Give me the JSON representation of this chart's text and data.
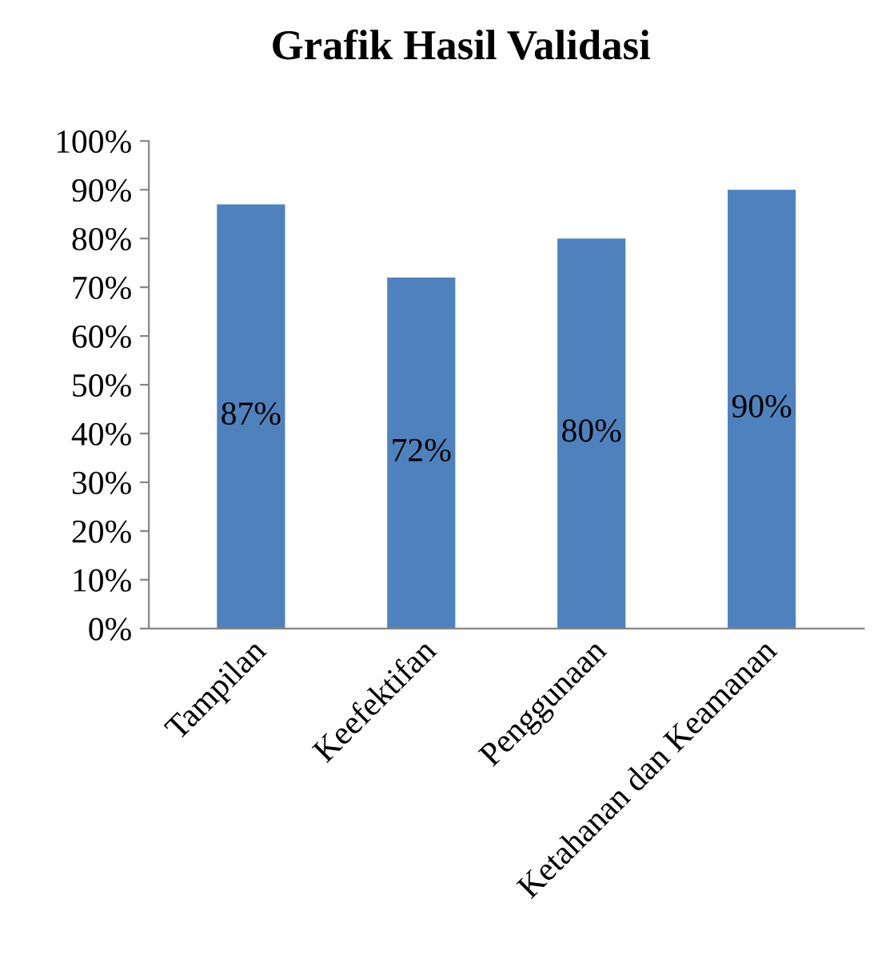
{
  "chart_data": {
    "type": "bar",
    "title": "Grafik Hasil Validasi",
    "categories": [
      "Tampilan",
      "Keefektifan",
      "Penggunaan",
      "Ketahanan dan Keamanan"
    ],
    "values": [
      87,
      72,
      80,
      90
    ],
    "value_labels": [
      "87%",
      "72%",
      "80%",
      "90%"
    ],
    "color": "#4f81bd",
    "ylim": [
      0,
      100
    ],
    "yticks": [
      {
        "value": 0,
        "label": "0%"
      },
      {
        "value": 10,
        "label": "10%"
      },
      {
        "value": 20,
        "label": "20%"
      },
      {
        "value": 30,
        "label": "30%"
      },
      {
        "value": 40,
        "label": "40%"
      },
      {
        "value": 50,
        "label": "50%"
      },
      {
        "value": 60,
        "label": "60%"
      },
      {
        "value": 70,
        "label": "70%"
      },
      {
        "value": 80,
        "label": "80%"
      },
      {
        "value": 90,
        "label": "90%"
      },
      {
        "value": 100,
        "label": "100%"
      }
    ],
    "grid": false,
    "legend": false
  }
}
